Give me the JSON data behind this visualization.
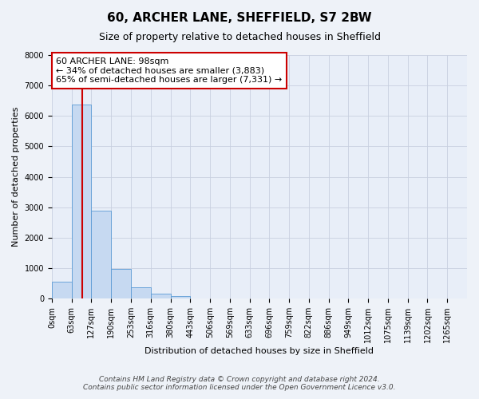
{
  "title": "60, ARCHER LANE, SHEFFIELD, S7 2BW",
  "subtitle": "Size of property relative to detached houses in Sheffield",
  "xlabel": "Distribution of detached houses by size in Sheffield",
  "ylabel": "Number of detached properties",
  "bar_categories": [
    "0sqm",
    "63sqm",
    "127sqm",
    "190sqm",
    "253sqm",
    "316sqm",
    "380sqm",
    "443sqm",
    "506sqm",
    "569sqm",
    "633sqm",
    "696sqm",
    "759sqm",
    "822sqm",
    "886sqm",
    "949sqm",
    "1012sqm",
    "1075sqm",
    "1139sqm",
    "1202sqm",
    "1265sqm"
  ],
  "bar_values": [
    550,
    6380,
    2900,
    975,
    370,
    155,
    80,
    0,
    0,
    0,
    0,
    0,
    0,
    0,
    0,
    0,
    0,
    0,
    0,
    0,
    0
  ],
  "bar_color": "#c6d9f1",
  "bar_edge_color": "#5b9bd5",
  "ylim": [
    0,
    8000
  ],
  "yticks": [
    0,
    1000,
    2000,
    3000,
    4000,
    5000,
    6000,
    7000,
    8000
  ],
  "property_sqm": 98,
  "bin_edges": [
    0,
    63,
    127,
    190,
    253,
    316,
    380,
    443,
    506,
    569,
    633,
    696,
    759,
    822,
    886,
    949,
    1012,
    1075,
    1139,
    1202,
    1265
  ],
  "annotation_title": "60 ARCHER LANE: 98sqm",
  "annotation_line1": "← 34% of detached houses are smaller (3,883)",
  "annotation_line2": "65% of semi-detached houses are larger (7,331) →",
  "footer_line1": "Contains HM Land Registry data © Crown copyright and database right 2024.",
  "footer_line2": "Contains public sector information licensed under the Open Government Licence v3.0.",
  "background_color": "#eef2f8",
  "plot_bg_color": "#e8eef8",
  "grid_color": "#c8d0e0",
  "annotation_box_color": "#ffffff",
  "annotation_box_edge": "#cc0000",
  "red_line_color": "#cc0000",
  "title_fontsize": 11,
  "subtitle_fontsize": 9,
  "axis_label_fontsize": 8,
  "tick_fontsize": 7,
  "annotation_fontsize": 8,
  "footer_fontsize": 6.5
}
